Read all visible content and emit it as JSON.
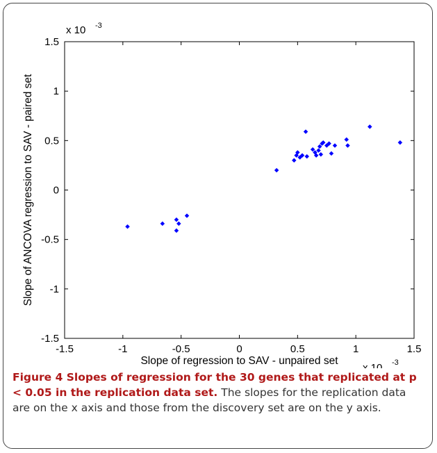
{
  "chart_data": {
    "type": "scatter",
    "xlabel": "Slope of regression to SAV - unpaired set",
    "ylabel": "Slope of ANCOVA regression to SAV - paired set",
    "xlim": [
      -1.5,
      1.5
    ],
    "ylim": [
      -1.5,
      1.5
    ],
    "x_exponent": "x 10",
    "x_exponent_power": "-3",
    "y_exponent": "x 10",
    "y_exponent_power": "-3",
    "xticks": [
      -1.5,
      -1,
      -0.5,
      0,
      0.5,
      1,
      1.5
    ],
    "yticks": [
      -1.5,
      -1,
      -0.5,
      0,
      0.5,
      1,
      1.5
    ],
    "xtick_labels": [
      "-1.5",
      "-1",
      "-0.5",
      "0",
      "0.5",
      "1",
      "1.5"
    ],
    "ytick_labels": [
      "-1.5",
      "-1",
      "-0.5",
      "0",
      "0.5",
      "1",
      "1.5"
    ],
    "marker_color": "#0000ff",
    "grid": false,
    "points": [
      {
        "x": -0.96,
        "y": -0.37
      },
      {
        "x": -0.66,
        "y": -0.34
      },
      {
        "x": -0.54,
        "y": -0.3
      },
      {
        "x": -0.52,
        "y": -0.34
      },
      {
        "x": -0.54,
        "y": -0.41
      },
      {
        "x": -0.45,
        "y": -0.26
      },
      {
        "x": 0.32,
        "y": 0.2
      },
      {
        "x": 0.47,
        "y": 0.3
      },
      {
        "x": 0.49,
        "y": 0.35
      },
      {
        "x": 0.5,
        "y": 0.38
      },
      {
        "x": 0.52,
        "y": 0.33
      },
      {
        "x": 0.54,
        "y": 0.35
      },
      {
        "x": 0.57,
        "y": 0.59
      },
      {
        "x": 0.58,
        "y": 0.34
      },
      {
        "x": 0.63,
        "y": 0.41
      },
      {
        "x": 0.65,
        "y": 0.38
      },
      {
        "x": 0.66,
        "y": 0.35
      },
      {
        "x": 0.68,
        "y": 0.4
      },
      {
        "x": 0.69,
        "y": 0.44
      },
      {
        "x": 0.7,
        "y": 0.36
      },
      {
        "x": 0.71,
        "y": 0.47
      },
      {
        "x": 0.72,
        "y": 0.48
      },
      {
        "x": 0.75,
        "y": 0.45
      },
      {
        "x": 0.77,
        "y": 0.47
      },
      {
        "x": 0.79,
        "y": 0.37
      },
      {
        "x": 0.82,
        "y": 0.45
      },
      {
        "x": 0.92,
        "y": 0.51
      },
      {
        "x": 0.93,
        "y": 0.45
      },
      {
        "x": 1.12,
        "y": 0.64
      },
      {
        "x": 1.38,
        "y": 0.48
      }
    ]
  },
  "caption": {
    "title": "Figure 4 Slopes of regression for the 30 genes that replicated at p < 0.05 in the replication data set.",
    "body": "The slopes for the replication data are on the x axis and those from the discovery set are on the y axis."
  }
}
